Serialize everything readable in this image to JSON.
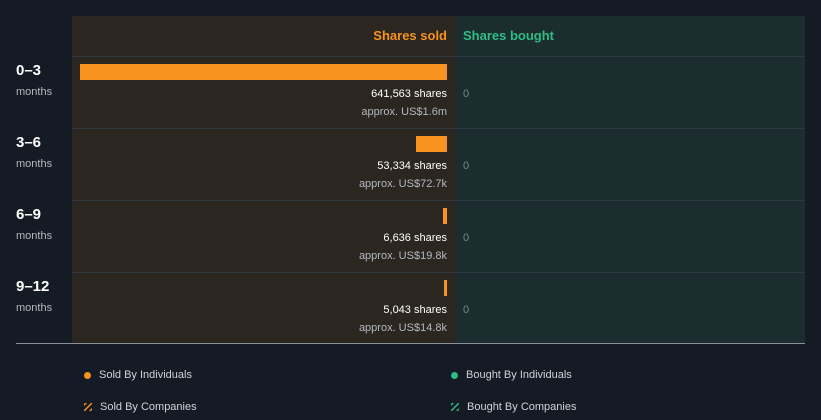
{
  "headers": {
    "sold": "Shares sold",
    "bought": "Shares bought"
  },
  "colors": {
    "sold": "#f7931e",
    "bought": "#2ebd85"
  },
  "chart_data": {
    "type": "bar",
    "orientation": "horizontal",
    "categories": [
      "0–3",
      "3–6",
      "6–9",
      "9–12"
    ],
    "category_unit": "months",
    "series": [
      {
        "name": "Shares sold",
        "values": [
          641563,
          53334,
          6636,
          5043
        ],
        "labels": [
          "641,563 shares",
          "53,334 shares",
          "6,636 shares",
          "5,043 shares"
        ],
        "approx": [
          "approx. US$1.6m",
          "approx. US$72.7k",
          "approx. US$19.8k",
          "approx. US$14.8k"
        ]
      },
      {
        "name": "Shares bought",
        "values": [
          0,
          0,
          0,
          0
        ],
        "labels": [
          "0",
          "0",
          "0",
          "0"
        ]
      }
    ]
  },
  "legend": {
    "sold_individuals": "Sold By Individuals",
    "bought_individuals": "Bought By Individuals",
    "sold_companies": "Sold By Companies",
    "bought_companies": "Bought By Companies"
  }
}
